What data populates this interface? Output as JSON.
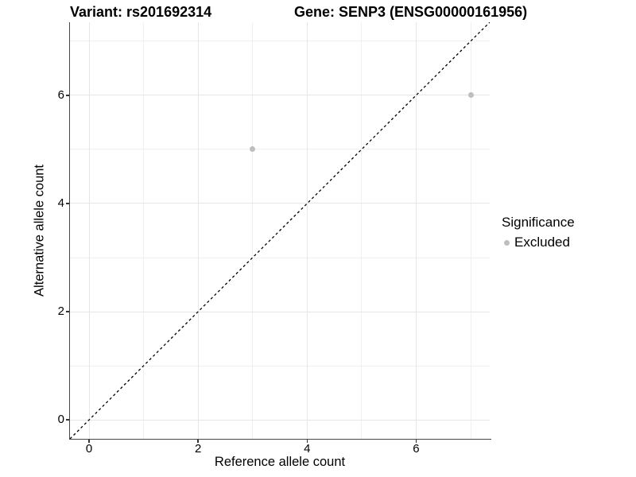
{
  "figure": {
    "title_variant": "Variant: rs201692314",
    "title_gene": "Gene: SENP3 (ENSG00000161956)"
  },
  "chart_data": {
    "type": "scatter",
    "title": "Variant: rs201692314   Gene: SENP3 (ENSG00000161956)",
    "xlabel": "Reference allele count",
    "ylabel": "Alternative allele count",
    "xlim": [
      -0.35,
      7.35
    ],
    "ylim": [
      -0.35,
      7.35
    ],
    "x_major_ticks": [
      0,
      2,
      4,
      6
    ],
    "y_major_ticks": [
      0,
      2,
      4,
      6
    ],
    "x_minor_ticks": [
      1,
      3,
      5,
      7
    ],
    "y_minor_ticks": [
      1,
      3,
      5,
      7
    ],
    "grid": "major+minor",
    "series": [
      {
        "name": "Excluded",
        "color": "#bebebe",
        "points": [
          {
            "x": 3,
            "y": 5
          },
          {
            "x": 7,
            "y": 6
          }
        ]
      }
    ],
    "reference_line": {
      "slope": 1,
      "intercept": 0,
      "linetype": "dashed",
      "color": "#000000"
    },
    "legend": {
      "position": "right",
      "title": "Significance",
      "items": [
        {
          "label": "Excluded",
          "color": "#bebebe",
          "marker": "circle"
        }
      ]
    }
  },
  "colors": {
    "grid_major": "#e6e6e6",
    "grid_minor": "#f0f0f0",
    "axis_line": "#474747",
    "tick": "#333333",
    "point": "#bebebe",
    "text": "#000000"
  }
}
